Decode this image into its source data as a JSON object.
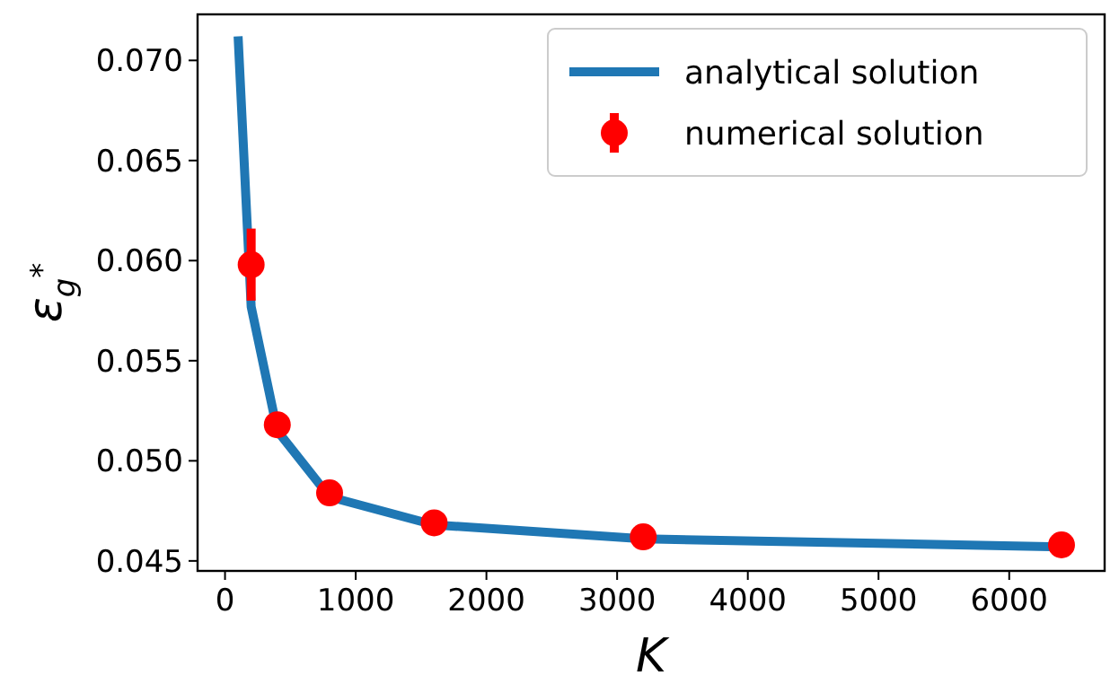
{
  "chart_data": {
    "type": "line",
    "xlabel": "K",
    "ylabel": "ε$_{g}$$^{*}$",
    "xlim": [
      -210,
      6730
    ],
    "ylim": [
      0.0445,
      0.0723
    ],
    "xticks": [
      0,
      1000,
      2000,
      3000,
      4000,
      5000,
      6000
    ],
    "yticks": [
      {
        "value": 0.045,
        "label": "0.045"
      },
      {
        "value": 0.05,
        "label": "0.050"
      },
      {
        "value": 0.055,
        "label": "0.055"
      },
      {
        "value": 0.06,
        "label": "0.060"
      },
      {
        "value": 0.065,
        "label": "0.065"
      },
      {
        "value": 0.07,
        "label": "0.070"
      }
    ],
    "legend": "top right",
    "grid": false,
    "series": [
      {
        "name": "analytical solution",
        "color": "#1f77b4",
        "marker": "none",
        "line_style": "solid",
        "x": [
          100,
          200,
          400,
          800,
          1600,
          3200,
          6400
        ],
        "values": [
          0.0712,
          0.0577,
          0.0515,
          0.0482,
          0.0468,
          0.0461,
          0.0457
        ]
      },
      {
        "name": "numerical solution",
        "type": "scatter",
        "color": "#ff0000",
        "marker": "circle",
        "x": [
          200,
          400,
          800,
          1600,
          3200,
          6400
        ],
        "values": [
          0.0598,
          0.0518,
          0.0484,
          0.0469,
          0.0462,
          0.0458
        ],
        "errors": [
          0.0018,
          null,
          null,
          null,
          null,
          null
        ]
      }
    ]
  }
}
